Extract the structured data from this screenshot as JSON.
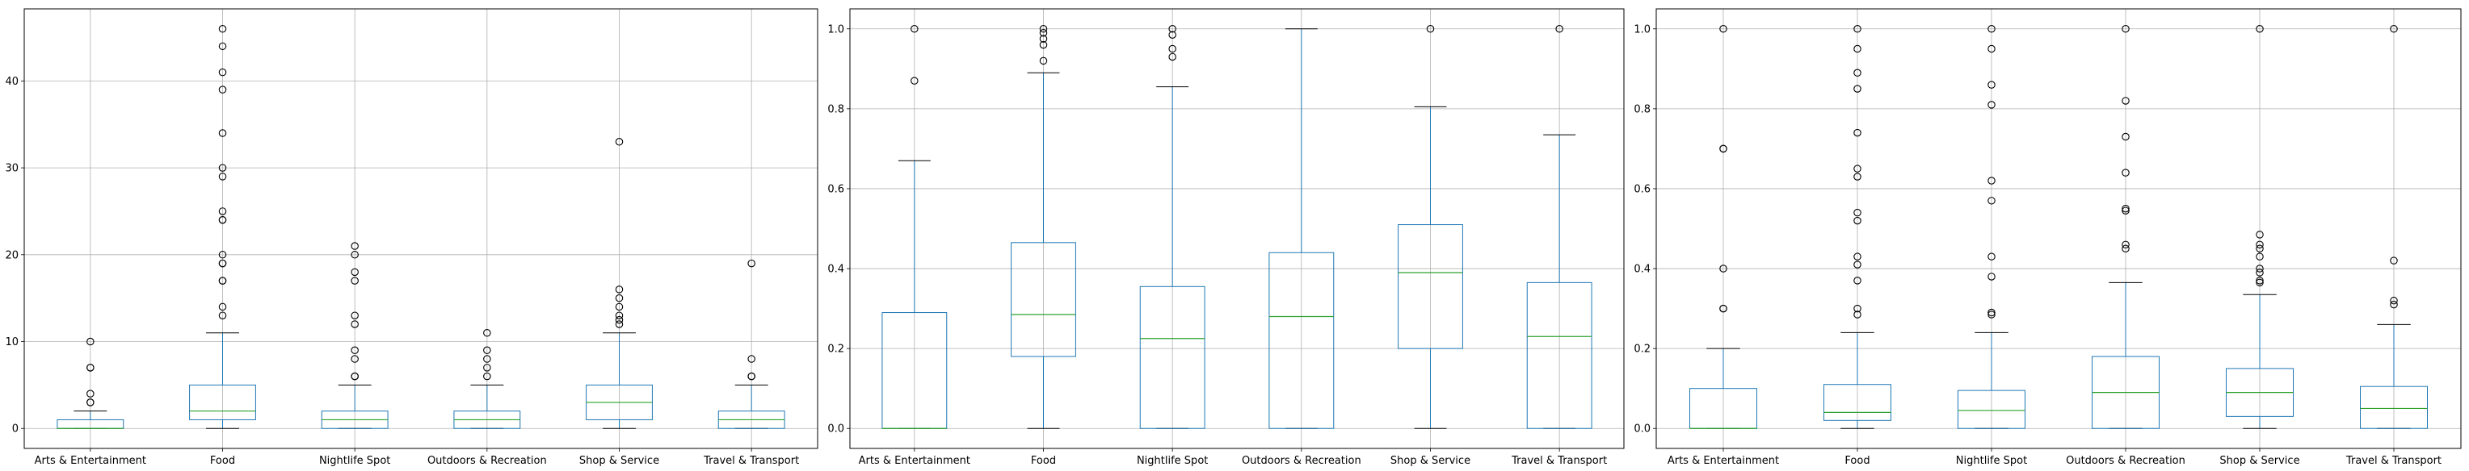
{
  "chart_data": [
    {
      "type": "box",
      "categories": [
        "Arts & Entertainment",
        "Food",
        "Nightlife Spot",
        "Outdoors & Recreation",
        "Shop & Service",
        "Travel & Transport"
      ],
      "ylim": [
        -2.3,
        48.3
      ],
      "yticks": [
        0,
        10,
        20,
        30,
        40
      ],
      "ytick_labels": [
        "0",
        "10",
        "20",
        "30",
        "40"
      ],
      "grid": true,
      "boxes": [
        {
          "whislo": 0,
          "q1": 0,
          "med": 0,
          "q3": 1,
          "whishi": 2,
          "fliers": [
            3,
            3,
            4,
            7,
            7,
            10
          ]
        },
        {
          "whislo": 0,
          "q1": 1,
          "med": 2,
          "q3": 5,
          "whishi": 11,
          "fliers": [
            13,
            14,
            17,
            17,
            19,
            19,
            20,
            24,
            24,
            25,
            29,
            30,
            34,
            39,
            41,
            44,
            46
          ]
        },
        {
          "whislo": 0,
          "q1": 0,
          "med": 1,
          "q3": 2,
          "whishi": 5,
          "fliers": [
            6,
            6,
            8,
            9,
            12,
            13,
            17,
            18,
            20,
            21
          ]
        },
        {
          "whislo": 0,
          "q1": 0,
          "med": 1,
          "q3": 2,
          "whishi": 5,
          "fliers": [
            6,
            7,
            8,
            9,
            11
          ]
        },
        {
          "whislo": 0,
          "q1": 1,
          "med": 3,
          "q3": 5,
          "whishi": 11,
          "fliers": [
            12,
            12.5,
            13,
            14,
            15,
            16,
            33
          ]
        },
        {
          "whislo": 0,
          "q1": 0,
          "med": 1,
          "q3": 2,
          "whishi": 5,
          "fliers": [
            6,
            6,
            8,
            19
          ]
        }
      ]
    },
    {
      "type": "box",
      "categories": [
        "Arts & Entertainment",
        "Food",
        "Nightlife Spot",
        "Outdoors & Recreation",
        "Shop & Service",
        "Travel & Transport"
      ],
      "ylim": [
        -0.05,
        1.05
      ],
      "yticks": [
        0,
        0.2,
        0.4,
        0.6,
        0.8,
        1.0
      ],
      "ytick_labels": [
        "0.0",
        "0.2",
        "0.4",
        "0.6",
        "0.8",
        "1.0"
      ],
      "grid": true,
      "boxes": [
        {
          "whislo": 0,
          "q1": 0,
          "med": 0,
          "q3": 0.29,
          "whishi": 0.67,
          "fliers": [
            0.87,
            1.0
          ]
        },
        {
          "whislo": 0,
          "q1": 0.18,
          "med": 0.285,
          "q3": 0.465,
          "whishi": 0.89,
          "fliers": [
            0.92,
            0.96,
            0.975,
            0.99,
            1.0
          ]
        },
        {
          "whislo": 0,
          "q1": 0,
          "med": 0.225,
          "q3": 0.355,
          "whishi": 0.855,
          "fliers": [
            0.93,
            0.95,
            0.985,
            1.0
          ]
        },
        {
          "whislo": 0,
          "q1": 0,
          "med": 0.28,
          "q3": 0.44,
          "whishi": 1.0,
          "fliers": []
        },
        {
          "whislo": 0,
          "q1": 0.2,
          "med": 0.39,
          "q3": 0.51,
          "whishi": 0.805,
          "fliers": [
            1.0
          ]
        },
        {
          "whislo": 0,
          "q1": 0,
          "med": 0.23,
          "q3": 0.365,
          "whishi": 0.735,
          "fliers": [
            1.0
          ]
        }
      ]
    },
    {
      "type": "box",
      "categories": [
        "Arts & Entertainment",
        "Food",
        "Nightlife Spot",
        "Outdoors & Recreation",
        "Shop & Service",
        "Travel & Transport"
      ],
      "ylim": [
        -0.05,
        1.05
      ],
      "yticks": [
        0,
        0.2,
        0.4,
        0.6,
        0.8,
        1.0
      ],
      "ytick_labels": [
        "0.0",
        "0.2",
        "0.4",
        "0.6",
        "0.8",
        "1.0"
      ],
      "grid": true,
      "boxes": [
        {
          "whislo": 0,
          "q1": 0,
          "med": 0,
          "q3": 0.1,
          "whishi": 0.2,
          "fliers": [
            0.3,
            0.3,
            0.4,
            0.7,
            0.7,
            1.0
          ]
        },
        {
          "whislo": 0,
          "q1": 0.02,
          "med": 0.04,
          "q3": 0.11,
          "whishi": 0.24,
          "fliers": [
            0.285,
            0.3,
            0.37,
            0.41,
            0.43,
            0.52,
            0.54,
            0.63,
            0.65,
            0.74,
            0.85,
            0.89,
            0.95,
            1.0
          ]
        },
        {
          "whislo": 0,
          "q1": 0,
          "med": 0.045,
          "q3": 0.095,
          "whishi": 0.24,
          "fliers": [
            0.285,
            0.29,
            0.38,
            0.43,
            0.57,
            0.62,
            0.81,
            0.86,
            0.95,
            1.0
          ]
        },
        {
          "whislo": 0,
          "q1": 0,
          "med": 0.09,
          "q3": 0.18,
          "whishi": 0.365,
          "fliers": [
            0.45,
            0.46,
            0.545,
            0.55,
            0.64,
            0.73,
            0.82,
            1.0
          ]
        },
        {
          "whislo": 0,
          "q1": 0.03,
          "med": 0.09,
          "q3": 0.15,
          "whishi": 0.335,
          "fliers": [
            0.365,
            0.37,
            0.39,
            0.4,
            0.43,
            0.45,
            0.46,
            0.485,
            1.0
          ]
        },
        {
          "whislo": 0,
          "q1": 0,
          "med": 0.05,
          "q3": 0.105,
          "whishi": 0.26,
          "fliers": [
            0.31,
            0.32,
            0.42,
            1.0
          ]
        }
      ]
    }
  ],
  "colors": {
    "box": "#1f77b4",
    "median": "#2ca02c",
    "whisker": "#1f77b4",
    "cap": "#000000",
    "flier": "#000000",
    "grid": "#b0b0b0",
    "axis": "#000000"
  }
}
